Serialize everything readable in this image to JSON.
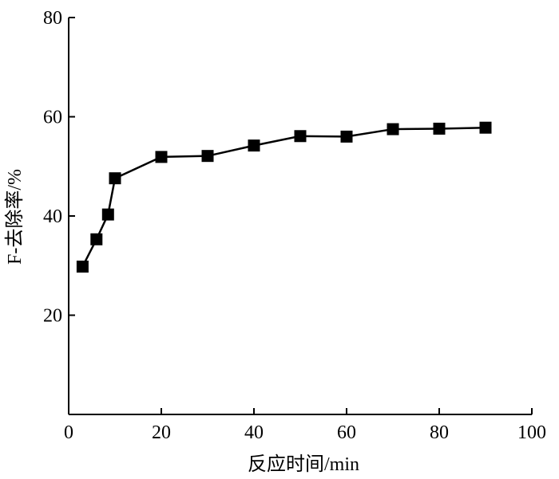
{
  "chart_data": {
    "type": "line",
    "title": "",
    "xlabel": "反应时间/min",
    "ylabel": "F-去除率/%",
    "xlim": [
      0,
      100
    ],
    "ylim": [
      0,
      80
    ],
    "xticks": [
      0,
      20,
      40,
      60,
      80,
      100
    ],
    "yticks": [
      20,
      40,
      60,
      80
    ],
    "grid": false,
    "series": [
      {
        "marker": "square",
        "color": "#000000",
        "x": [
          3,
          6,
          8.5,
          10,
          20,
          30,
          40,
          50,
          60,
          70,
          80,
          90
        ],
        "y": [
          29.8,
          35.3,
          40.3,
          47.6,
          51.9,
          52.1,
          54.2,
          56.1,
          56.0,
          57.5,
          57.6,
          57.8
        ]
      }
    ]
  }
}
